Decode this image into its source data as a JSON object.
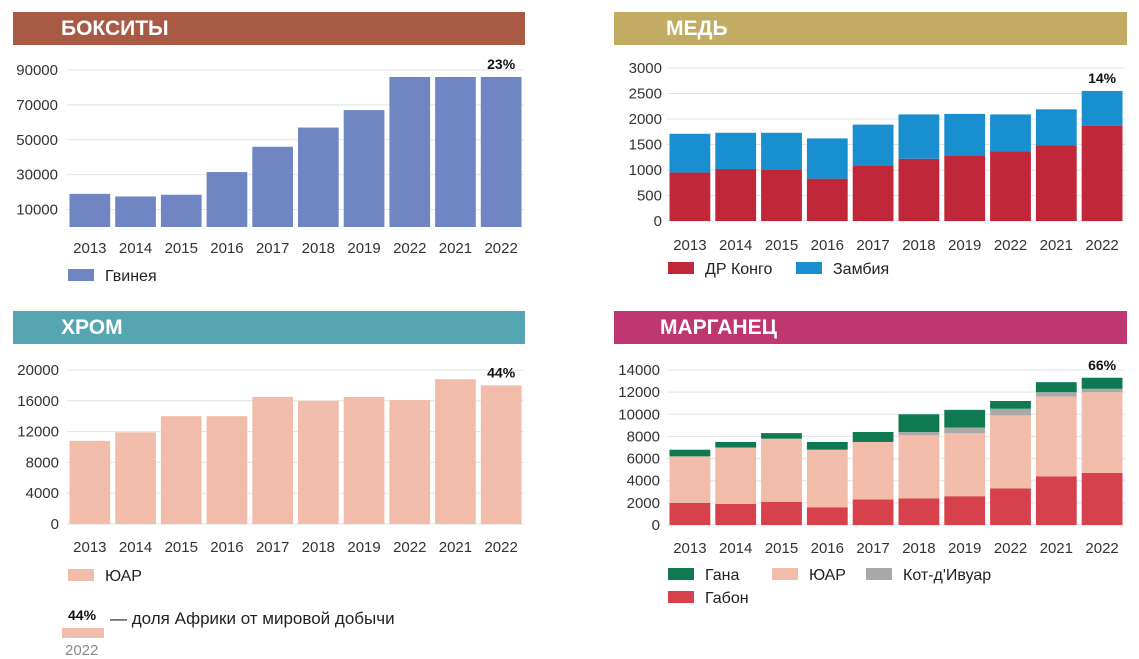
{
  "colors": {
    "bauxite_banner": "#a85a45",
    "copper_banner": "#c2ab62",
    "chrome_banner": "#55a6b1",
    "manganese_banner": "#bf3770",
    "guinea": "#6f86c2",
    "drc": "#c0283a",
    "zambia": "#1a8fcf",
    "south_africa": "#f2bcaa",
    "ghana": "#0f7a52",
    "gabon": "#d6414c",
    "cote_divoire": "#a9a9a9",
    "grid": "#e3e3e3"
  },
  "footnote": {
    "percent": "44%",
    "text": "— доля Африки от мировой добычи",
    "year": "2022"
  },
  "chart_data": [
    {
      "id": "bauxite",
      "type": "bar",
      "title": "БОКСИТЫ",
      "categories": [
        "2013",
        "2014",
        "2015",
        "2016",
        "2017",
        "2018",
        "2019",
        "2022",
        "2021",
        "2022"
      ],
      "series": [
        {
          "name": "Гвинея",
          "color_key": "guinea",
          "values": [
            19000,
            17500,
            18500,
            31500,
            46000,
            57000,
            67000,
            86000,
            86000,
            86000
          ]
        }
      ],
      "ylim": [
        0,
        90000
      ],
      "yticks": [
        10000,
        30000,
        50000,
        70000,
        90000
      ],
      "share_label": "23%",
      "xlabel": "",
      "ylabel": "",
      "legend_placement": "bottom-left"
    },
    {
      "id": "copper",
      "type": "bar",
      "stacked": true,
      "title": "МЕДЬ",
      "categories": [
        "2013",
        "2014",
        "2015",
        "2016",
        "2017",
        "2018",
        "2019",
        "2022",
        "2021",
        "2022"
      ],
      "series": [
        {
          "name": "ДР Конго",
          "color_key": "drc",
          "values": [
            950,
            1020,
            1000,
            830,
            1090,
            1220,
            1290,
            1370,
            1480,
            1870
          ]
        },
        {
          "name": "Замбия",
          "color_key": "zambia",
          "values": [
            760,
            710,
            730,
            790,
            800,
            870,
            810,
            720,
            710,
            680
          ]
        }
      ],
      "ylim": [
        0,
        3000
      ],
      "yticks": [
        0,
        500,
        1000,
        1500,
        2000,
        2500,
        3000
      ],
      "share_label": "14%",
      "xlabel": "",
      "ylabel": "",
      "legend_placement": "bottom-left"
    },
    {
      "id": "chrome",
      "type": "bar",
      "title": "ХРОМ",
      "categories": [
        "2013",
        "2014",
        "2015",
        "2016",
        "2017",
        "2018",
        "2019",
        "2022",
        "2021",
        "2022"
      ],
      "series": [
        {
          "name": "ЮАР",
          "color_key": "south_africa",
          "values": [
            10800,
            11900,
            14000,
            14000,
            16500,
            16000,
            16500,
            16100,
            18800,
            18000
          ]
        }
      ],
      "ylim": [
        0,
        20000
      ],
      "yticks": [
        0,
        4000,
        8000,
        12000,
        16000,
        20000
      ],
      "share_label": "44%",
      "xlabel": "",
      "ylabel": "",
      "legend_placement": "bottom-left"
    },
    {
      "id": "manganese",
      "type": "bar",
      "stacked": true,
      "title": "МАРГАНЕЦ",
      "categories": [
        "2013",
        "2014",
        "2015",
        "2016",
        "2017",
        "2018",
        "2019",
        "2022",
        "2021",
        "2022"
      ],
      "series": [
        {
          "name": "Габон",
          "color_key": "gabon",
          "values": [
            2000,
            1900,
            2100,
            1600,
            2300,
            2400,
            2600,
            3300,
            4400,
            4700
          ]
        },
        {
          "name": "ЮАР",
          "color_key": "south_africa",
          "values": [
            4200,
            5100,
            5700,
            5200,
            5200,
            5700,
            5700,
            6600,
            7200,
            7300
          ]
        },
        {
          "name": "Кот-д'Ивуар",
          "color_key": "cote_divoire",
          "values": [
            0,
            0,
            0,
            0,
            0,
            300,
            500,
            600,
            400,
            300
          ]
        },
        {
          "name": "Гана",
          "color_key": "ghana",
          "values": [
            600,
            500,
            500,
            700,
            900,
            1600,
            1600,
            700,
            900,
            1000
          ]
        }
      ],
      "legend_order": [
        "Гана",
        "ЮАР",
        "Кот-д'Ивуар",
        "Габон"
      ],
      "ylim": [
        0,
        14000
      ],
      "yticks": [
        0,
        2000,
        4000,
        6000,
        8000,
        10000,
        12000,
        14000
      ],
      "share_label": "66%",
      "xlabel": "",
      "ylabel": "",
      "legend_placement": "bottom-left"
    }
  ]
}
